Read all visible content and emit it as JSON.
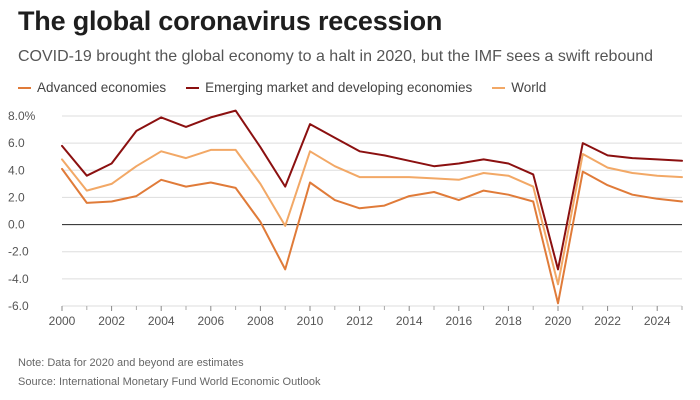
{
  "title": "The global coronavirus recession",
  "subtitle": "COVID-19 brought the global economy to a halt in 2020, but the IMF sees a swift rebound",
  "note": "Note: Data for 2020 and beyond are estimates",
  "source": "Source: International Monetary Fund World Economic Outlook",
  "colors": {
    "advanced": "#e07b39",
    "emerging": "#8b1010",
    "world": "#f2a866",
    "zero_line": "#222222",
    "grid": "#dddddd"
  },
  "chart_data": {
    "type": "line",
    "title": "The global coronavirus recession",
    "xlabel": "",
    "ylabel": "",
    "x": [
      2000,
      2001,
      2002,
      2003,
      2004,
      2005,
      2006,
      2007,
      2008,
      2009,
      2010,
      2011,
      2012,
      2013,
      2014,
      2015,
      2016,
      2017,
      2018,
      2019,
      2020,
      2021,
      2022,
      2023,
      2024,
      2025
    ],
    "xlim": [
      2000,
      2025
    ],
    "ylim": [
      -6,
      8
    ],
    "x_ticks": [
      "2000",
      "2002",
      "2004",
      "2006",
      "2008",
      "2010",
      "2012",
      "2014",
      "2016",
      "2018",
      "2020",
      "2022",
      "2024"
    ],
    "y_ticks": [
      "8.0%",
      "6.0",
      "4.0",
      "2.0",
      "0.0",
      "-2.0",
      "-4.0",
      "-6.0"
    ],
    "grid": "horizontal",
    "legend_position": "top-left",
    "series": [
      {
        "name": "Advanced economies",
        "color": "#e07b39",
        "values": [
          4.1,
          1.6,
          1.7,
          2.1,
          3.3,
          2.8,
          3.1,
          2.7,
          0.2,
          -3.3,
          3.1,
          1.8,
          1.2,
          1.4,
          2.1,
          2.4,
          1.8,
          2.5,
          2.2,
          1.7,
          -5.8,
          3.9,
          2.9,
          2.2,
          1.9,
          1.7
        ]
      },
      {
        "name": "Emerging market and developing economies",
        "color": "#8b1010",
        "values": [
          5.8,
          3.6,
          4.5,
          6.9,
          7.9,
          7.2,
          7.9,
          8.4,
          5.7,
          2.8,
          7.4,
          6.4,
          5.4,
          5.1,
          4.7,
          4.3,
          4.5,
          4.8,
          4.5,
          3.7,
          -3.3,
          6.0,
          5.1,
          4.9,
          4.8,
          4.7
        ]
      },
      {
        "name": "World",
        "color": "#f2a866",
        "values": [
          4.8,
          2.5,
          3.0,
          4.3,
          5.4,
          4.9,
          5.5,
          5.5,
          3.0,
          -0.1,
          5.4,
          4.3,
          3.5,
          3.5,
          3.5,
          3.4,
          3.3,
          3.8,
          3.6,
          2.8,
          -4.4,
          5.2,
          4.2,
          3.8,
          3.6,
          3.5
        ]
      }
    ]
  }
}
